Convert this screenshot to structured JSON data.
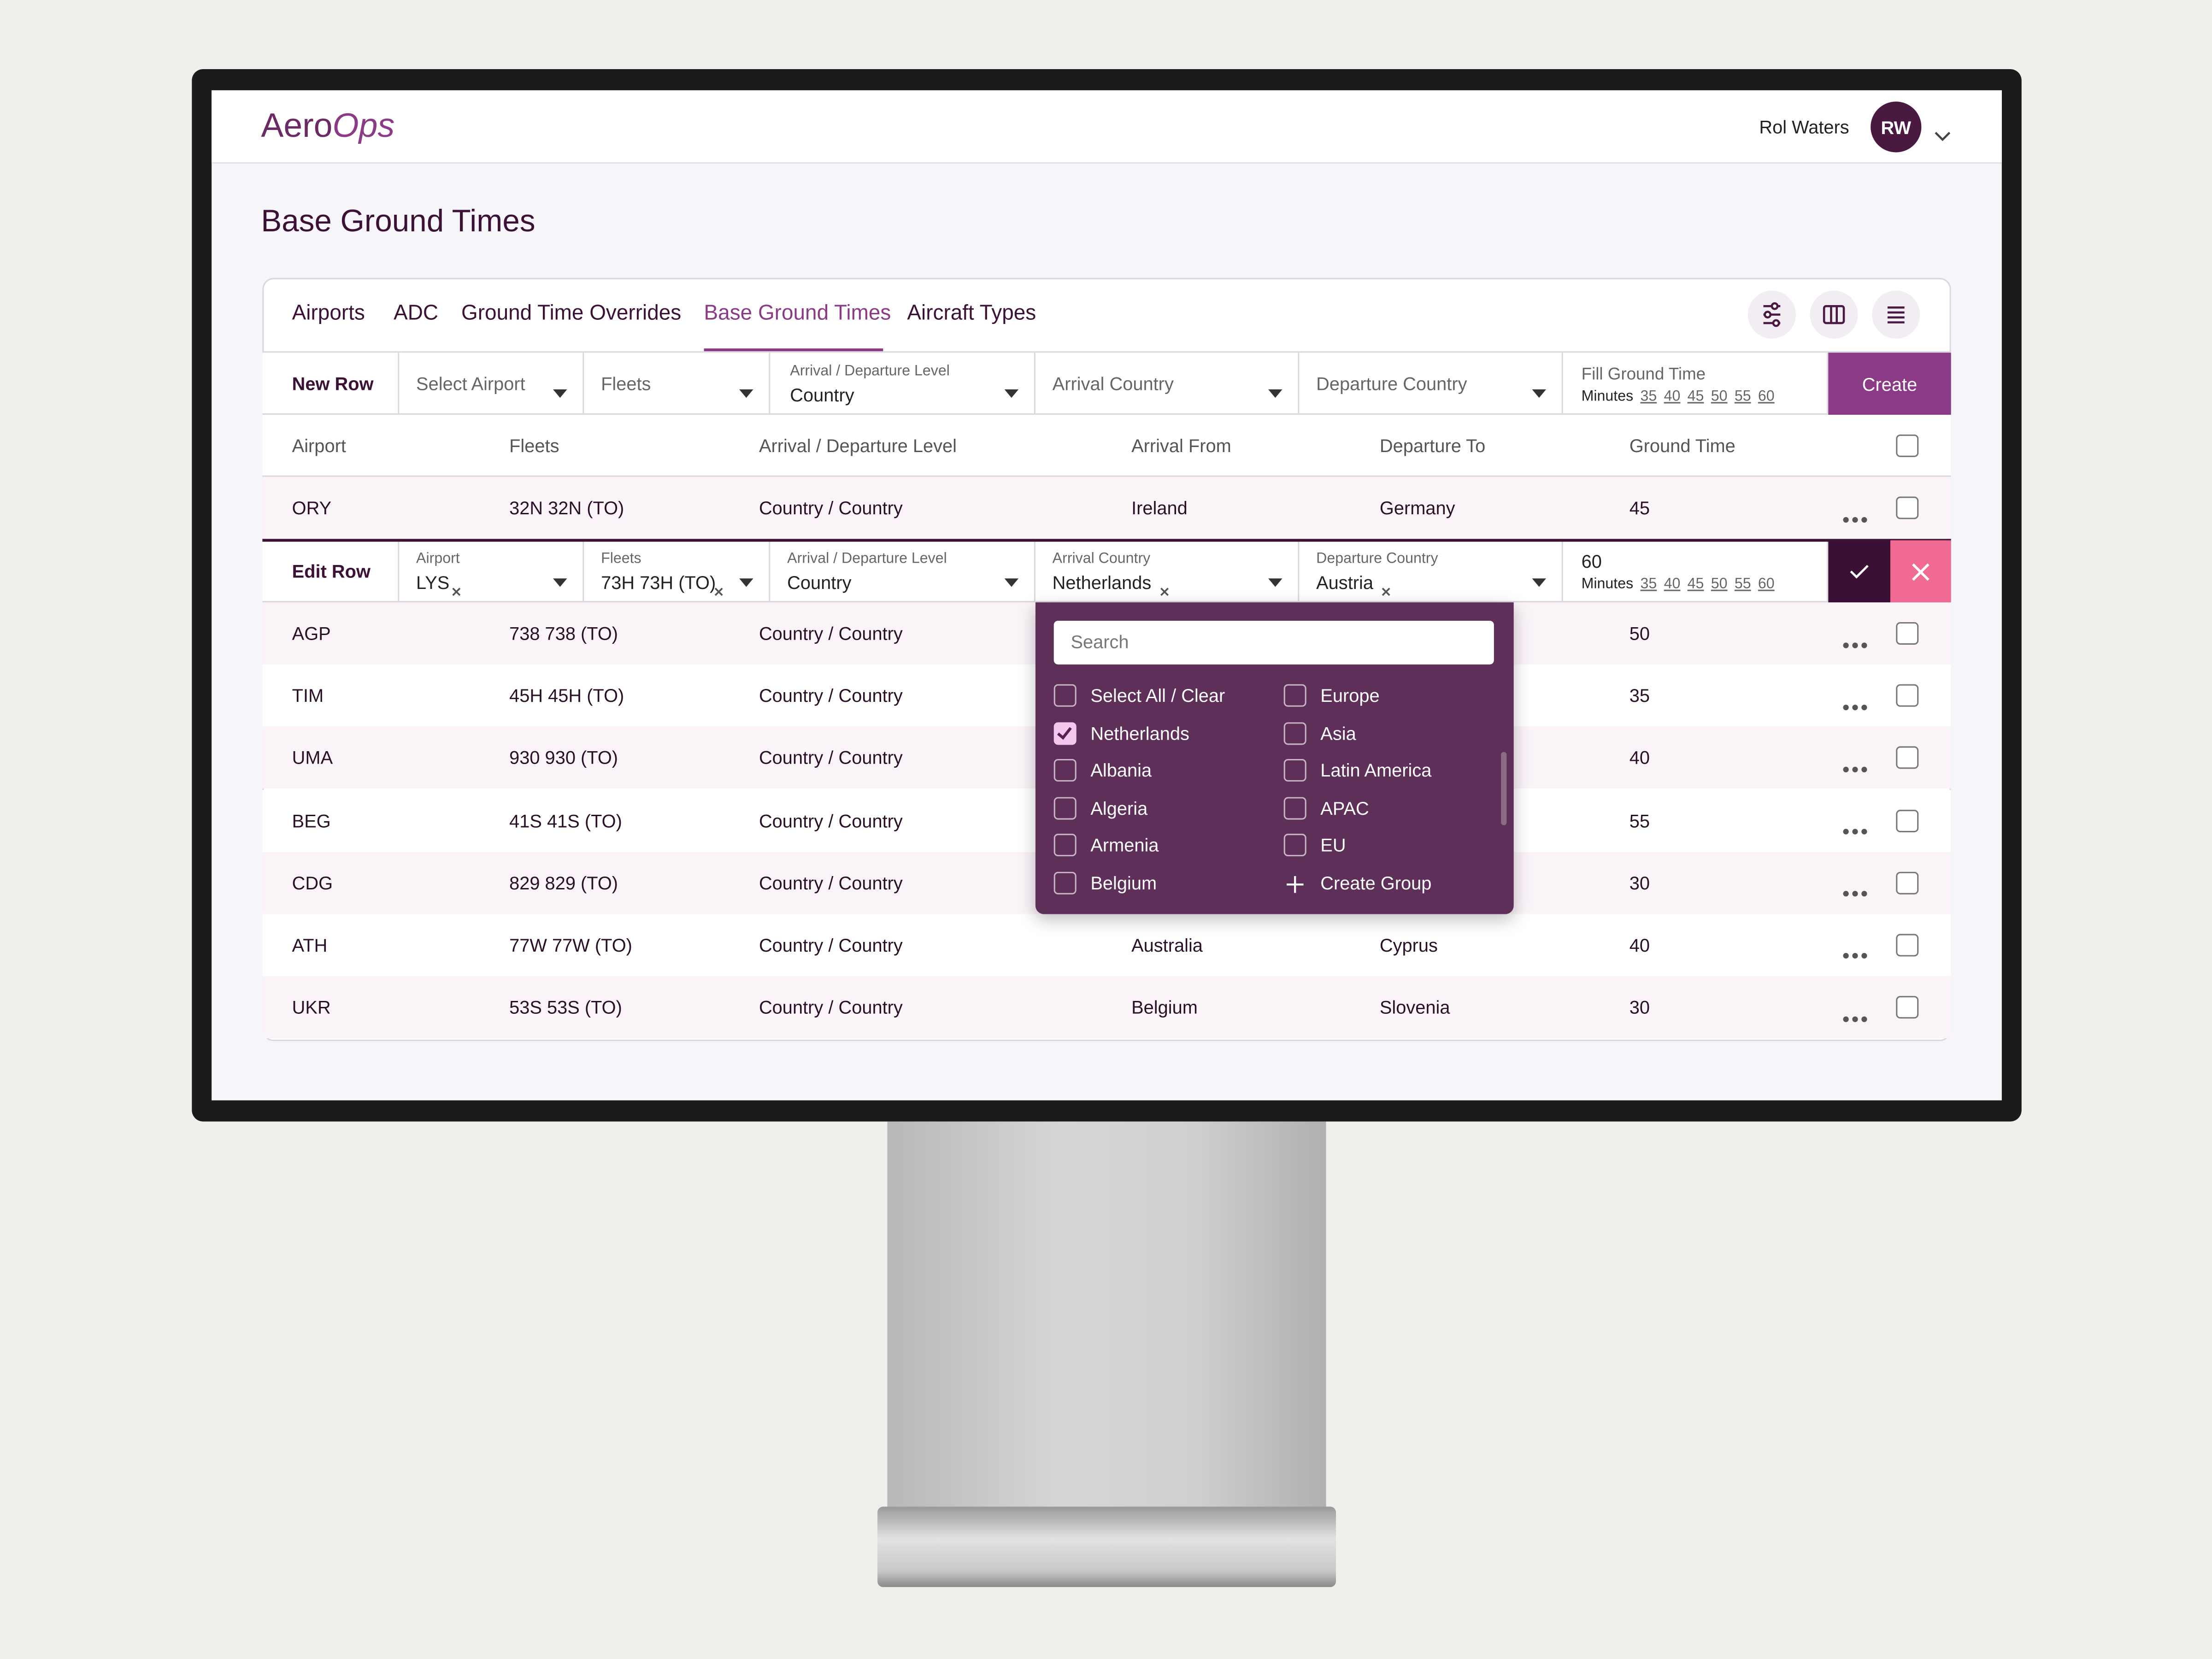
{
  "header": {
    "brand": "Aero",
    "brand_accent": "Ops",
    "user_name": "Rol Waters",
    "user_initials": "RW"
  },
  "page_title": "Base Ground Times",
  "tabs": {
    "items": [
      "Airports",
      "ADC",
      "Ground Time Overrides",
      "Base Ground Times",
      "Aircraft Types"
    ],
    "active": 3
  },
  "new_row": {
    "label": "New Row",
    "airport": "Select Airport",
    "fleets": "Fleets",
    "level": {
      "label": "Arrival / Departure Level",
      "value": "Country"
    },
    "arrival": "Arrival Country",
    "departure": "Departure Country",
    "ground_time": {
      "label": "Fill Ground Time",
      "unit": "Minutes",
      "options": [
        35,
        40,
        45,
        50,
        55,
        60
      ]
    },
    "button": "Create"
  },
  "table": {
    "columns": [
      "Airport",
      "Fleets",
      "Arrival / Departure Level",
      "Arrival From",
      "Departure To",
      "Ground Time"
    ],
    "rows": [
      {
        "airport": "ORY",
        "fleets": "32N 32N (TO)",
        "level": "Country / Country",
        "arrival": "Ireland",
        "departure": "Germany",
        "ground_time": 45
      },
      {
        "airport": "AGP",
        "fleets": "738 738 (TO)",
        "level": "Country / Country",
        "ground_time": 50
      },
      {
        "airport": "TIM",
        "fleets": "45H 45H (TO)",
        "level": "Country / Country",
        "ground_time": 35
      },
      {
        "airport": "UMA",
        "fleets": "930 930 (TO)",
        "level": "Country / Country",
        "ground_time": 40
      },
      {
        "airport": "BEG",
        "fleets": "41S 41S (TO)",
        "level": "Country / Country",
        "ground_time": 55
      },
      {
        "airport": "CDG",
        "fleets": "829 829 (TO)",
        "level": "Country / Country",
        "ground_time": 30
      },
      {
        "airport": "ATH",
        "fleets": "77W 77W (TO)",
        "level": "Country / Country",
        "arrival": "Australia",
        "departure": "Cyprus",
        "ground_time": 40
      },
      {
        "airport": "UKR",
        "fleets": "53S 53S (TO)",
        "level": "Country / Country",
        "arrival": "Belgium",
        "departure": "Slovenia",
        "ground_time": 30
      }
    ]
  },
  "edit_row": {
    "label": "Edit Row",
    "airport": {
      "label": "Airport",
      "value": "LYS"
    },
    "fleets": {
      "label": "Fleets",
      "value": "73H 73H (TO)"
    },
    "level": {
      "label": "Arrival / Departure Level",
      "value": "Country"
    },
    "arrival": {
      "label": "Arrival Country",
      "value": "Netherlands"
    },
    "departure": {
      "label": "Departure Country",
      "value": "Austria"
    },
    "ground_time": {
      "value": 60,
      "unit": "Minutes",
      "options": [
        35,
        40,
        45,
        50,
        55,
        60
      ]
    }
  },
  "dropdown": {
    "search_placeholder": "Search",
    "options": [
      {
        "label": "Select All / Clear",
        "checked": false
      },
      {
        "label": "Netherlands",
        "checked": true
      },
      {
        "label": "Albania",
        "checked": false
      },
      {
        "label": "Algeria",
        "checked": false
      },
      {
        "label": "Armenia",
        "checked": false
      },
      {
        "label": "Belgium",
        "checked": false
      }
    ],
    "groups": [
      "Europe",
      "Asia",
      "Latin America",
      "APAC",
      "EU"
    ],
    "create_group": "Create Group"
  }
}
